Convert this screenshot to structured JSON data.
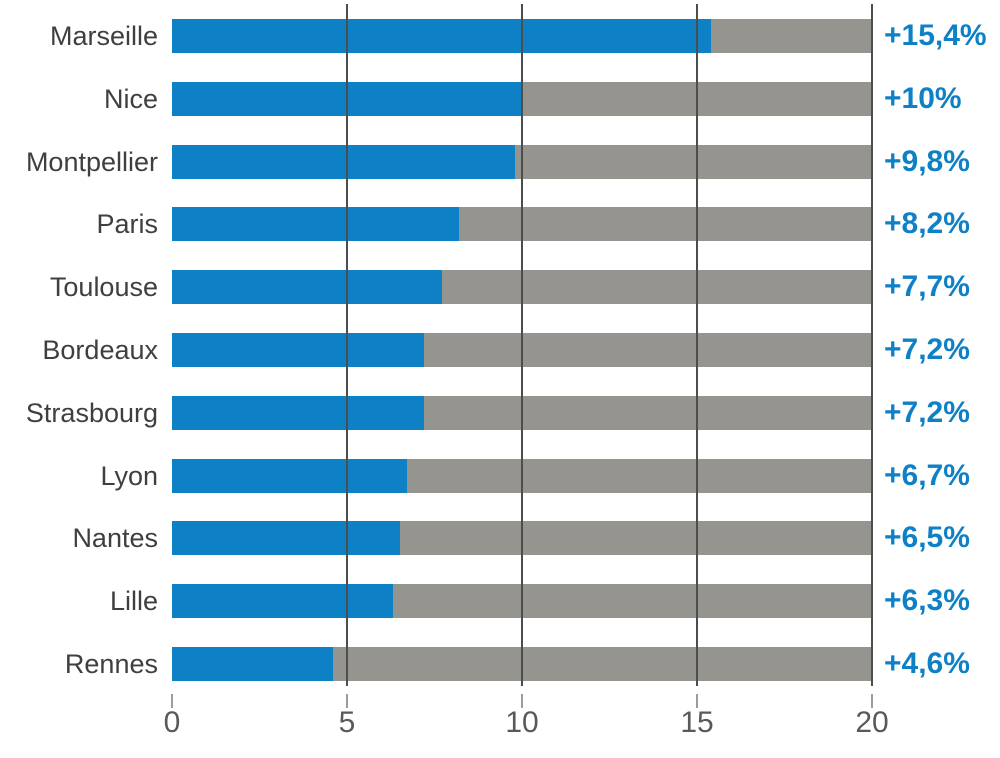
{
  "chart_data": {
    "type": "bar",
    "orientation": "horizontal",
    "title": "",
    "xlabel": "",
    "ylabel": "",
    "categories": [
      "Marseille",
      "Nice",
      "Montpellier",
      "Paris",
      "Toulouse",
      "Bordeaux",
      "Strasbourg",
      "Lyon",
      "Nantes",
      "Lille",
      "Rennes"
    ],
    "values": [
      15.4,
      10,
      9.8,
      8.2,
      7.7,
      7.2,
      7.2,
      6.7,
      6.5,
      6.3,
      4.6
    ],
    "value_labels": [
      "+15,4%",
      "+10%",
      "+9,8%",
      "+8,2%",
      "+7,7%",
      "+7,2%",
      "+7,2%",
      "+6,7%",
      "+6,5%",
      "+6,3%",
      "+4,6%"
    ],
    "x_ticks": [
      "0",
      "5",
      "10",
      "15",
      "20"
    ],
    "x_tick_values": [
      0,
      5,
      10,
      15,
      20
    ],
    "xlim": [
      0,
      20
    ],
    "grid": true,
    "legend": "none",
    "colors": {
      "bar": "#0e80c6",
      "track": "#96948f",
      "gridline": "#4d4d4d",
      "tick": "#9c9c9c",
      "axis_text": "#595959",
      "category_text": "#3f3f3f",
      "value_text": "#0e80c6"
    }
  }
}
